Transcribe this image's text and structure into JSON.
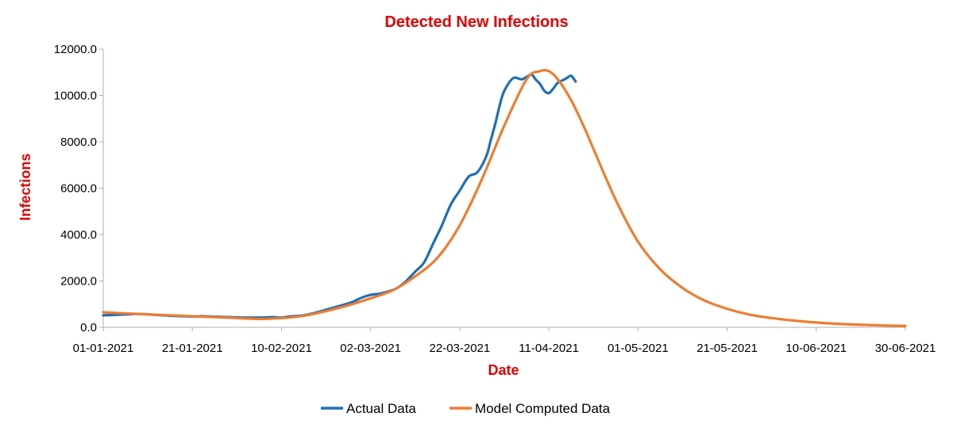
{
  "chart_data": {
    "type": "line",
    "title": "Detected New Infections",
    "xlabel": "Date",
    "ylabel": "Infections",
    "x_start": "01-01-2021",
    "x_end_day": 180,
    "ylim": [
      0,
      12000
    ],
    "y_ticks": [
      {
        "value": 0,
        "label": "0.0"
      },
      {
        "value": 2000,
        "label": "2000.0"
      },
      {
        "value": 4000,
        "label": "4000.0"
      },
      {
        "value": 6000,
        "label": "6000.0"
      },
      {
        "value": 8000,
        "label": "8000.0"
      },
      {
        "value": 10000,
        "label": "10000.0"
      },
      {
        "value": 12000,
        "label": "12000.0"
      }
    ],
    "x_ticks": [
      {
        "day": 0,
        "label": "01-01-2021"
      },
      {
        "day": 20,
        "label": "21-01-2021"
      },
      {
        "day": 40,
        "label": "10-02-2021"
      },
      {
        "day": 60,
        "label": "02-03-2021"
      },
      {
        "day": 80,
        "label": "22-03-2021"
      },
      {
        "day": 100,
        "label": "11-04-2021"
      },
      {
        "day": 120,
        "label": "01-05-2021"
      },
      {
        "day": 140,
        "label": "21-05-2021"
      },
      {
        "day": 160,
        "label": "10-06-2021"
      },
      {
        "day": 180,
        "label": "30-06-2021"
      }
    ],
    "grid": false,
    "legend_position": "bottom",
    "series": [
      {
        "name": "Actual Data",
        "color": "#1f6fb5",
        "x": [
          0,
          3,
          5,
          8,
          10,
          13,
          16,
          20,
          22,
          25,
          28,
          32,
          35,
          38,
          40,
          42,
          45,
          48,
          50,
          53,
          56,
          58,
          60,
          62,
          64,
          66,
          68,
          70,
          72,
          74,
          76,
          78,
          80,
          82,
          84,
          86,
          87,
          88,
          89,
          90,
          92,
          94,
          96,
          97,
          98,
          99,
          100,
          101,
          102,
          103,
          104,
          105,
          106
        ],
        "y": [
          520,
          540,
          560,
          580,
          560,
          520,
          490,
          470,
          480,
          460,
          440,
          420,
          420,
          440,
          420,
          470,
          520,
          650,
          760,
          920,
          1100,
          1280,
          1400,
          1450,
          1550,
          1700,
          2000,
          2400,
          2800,
          3600,
          4400,
          5300,
          5900,
          6500,
          6700,
          7400,
          8100,
          8800,
          9600,
          10200,
          10750,
          10700,
          10900,
          10700,
          10500,
          10200,
          10100,
          10300,
          10550,
          10650,
          10750,
          10850,
          10600
        ]
      },
      {
        "name": "Model Computed Data",
        "color": "#ed7d31",
        "x": [
          0,
          5,
          10,
          15,
          20,
          25,
          30,
          35,
          40,
          45,
          50,
          55,
          60,
          65,
          70,
          75,
          80,
          85,
          90,
          95,
          98,
          100,
          102,
          105,
          108,
          110,
          115,
          120,
          125,
          130,
          135,
          140,
          145,
          150,
          155,
          160,
          165,
          170,
          175,
          180
        ],
        "y": [
          650,
          600,
          560,
          520,
          480,
          440,
          400,
          360,
          400,
          500,
          700,
          950,
          1250,
          1600,
          2200,
          3000,
          4400,
          6400,
          8700,
          10700,
          11050,
          11050,
          10700,
          9800,
          8600,
          7700,
          5500,
          3700,
          2500,
          1700,
          1150,
          800,
          550,
          400,
          290,
          210,
          150,
          110,
          80,
          60
        ]
      }
    ]
  }
}
